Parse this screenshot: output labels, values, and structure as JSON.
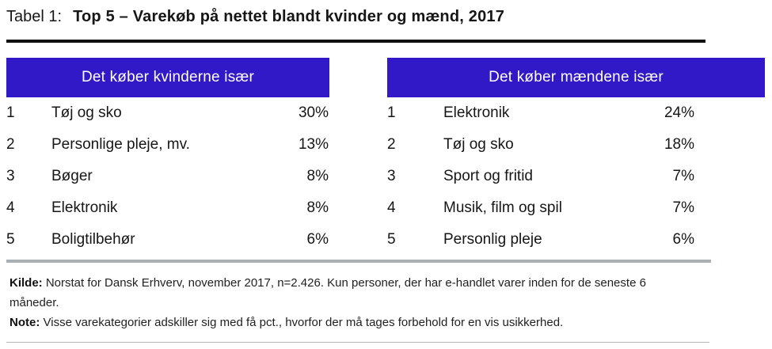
{
  "title": {
    "label": "Tabel 1:",
    "text": "Top 5 – Varekøb på nettet blandt kvinder og mænd, 2017"
  },
  "chart_data": [
    {
      "type": "table",
      "title": "Det køber kvinderne især",
      "columns": [
        "rank",
        "category",
        "share"
      ],
      "rows": [
        {
          "rank": "1",
          "category": "Tøj og sko",
          "value": "30%"
        },
        {
          "rank": "2",
          "category": "Personlige pleje, mv.",
          "value": "13%"
        },
        {
          "rank": "3",
          "category": "Bøger",
          "value": "8%"
        },
        {
          "rank": "4",
          "category": "Elektronik",
          "value": "8%"
        },
        {
          "rank": "5",
          "category": "Boligtilbehør",
          "value": "6%"
        }
      ]
    },
    {
      "type": "table",
      "title": "Det køber mændene især",
      "columns": [
        "rank",
        "category",
        "share"
      ],
      "rows": [
        {
          "rank": "1",
          "category": "Elektronik",
          "value": "24%"
        },
        {
          "rank": "2",
          "category": "Tøj og sko",
          "value": "18%"
        },
        {
          "rank": "3",
          "category": "Sport og fritid",
          "value": "7%"
        },
        {
          "rank": "4",
          "category": "Musik, film og spil",
          "value": "7%"
        },
        {
          "rank": "5",
          "category": "Personlig pleje",
          "value": "6%"
        }
      ]
    }
  ],
  "footer": {
    "kilde_label": "Kilde:",
    "kilde_text": "Norstat for Dansk Erhverv, november 2017, n=2.426. Kun personer, der har e-handlet varer inden for de seneste 6 måneder.",
    "note_label": "Note:",
    "note_text": "Visse varekategorier adskiller sig med få pct., hvorfor der må tages forbehold for en vis usikkerhed."
  },
  "colors": {
    "header_bg": "#3219C8",
    "header_text": "#FFFFFF",
    "rule_black": "#101010",
    "rule_gray": "#A9B1B2",
    "rule_thin": "#B4B4B4",
    "text": "#161616"
  }
}
